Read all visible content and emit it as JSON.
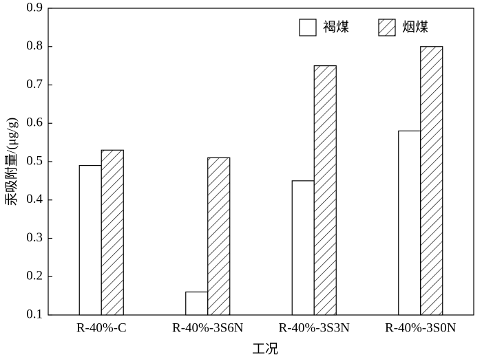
{
  "chart_data": {
    "type": "bar",
    "xlabel": "工况",
    "ylabel": "汞吸附量/(μg/g)",
    "categories": [
      "R-40%-C",
      "R-40%-3S6N",
      "R-40%-3S3N",
      "R-40%-3S0N"
    ],
    "series": [
      {
        "name": "褐煤",
        "color": "#000000",
        "pattern": "none",
        "values": [
          0.49,
          0.16,
          0.45,
          0.58
        ]
      },
      {
        "name": "烟煤",
        "color": "#000000",
        "pattern": "diagonal",
        "values": [
          0.53,
          0.51,
          0.75,
          0.8
        ]
      }
    ],
    "ylim": [
      0.1,
      0.9
    ],
    "yticks": [
      0.1,
      0.2,
      0.3,
      0.4,
      0.5,
      0.6,
      0.7,
      0.8,
      0.9
    ],
    "grid": false,
    "legend": "upper right"
  }
}
